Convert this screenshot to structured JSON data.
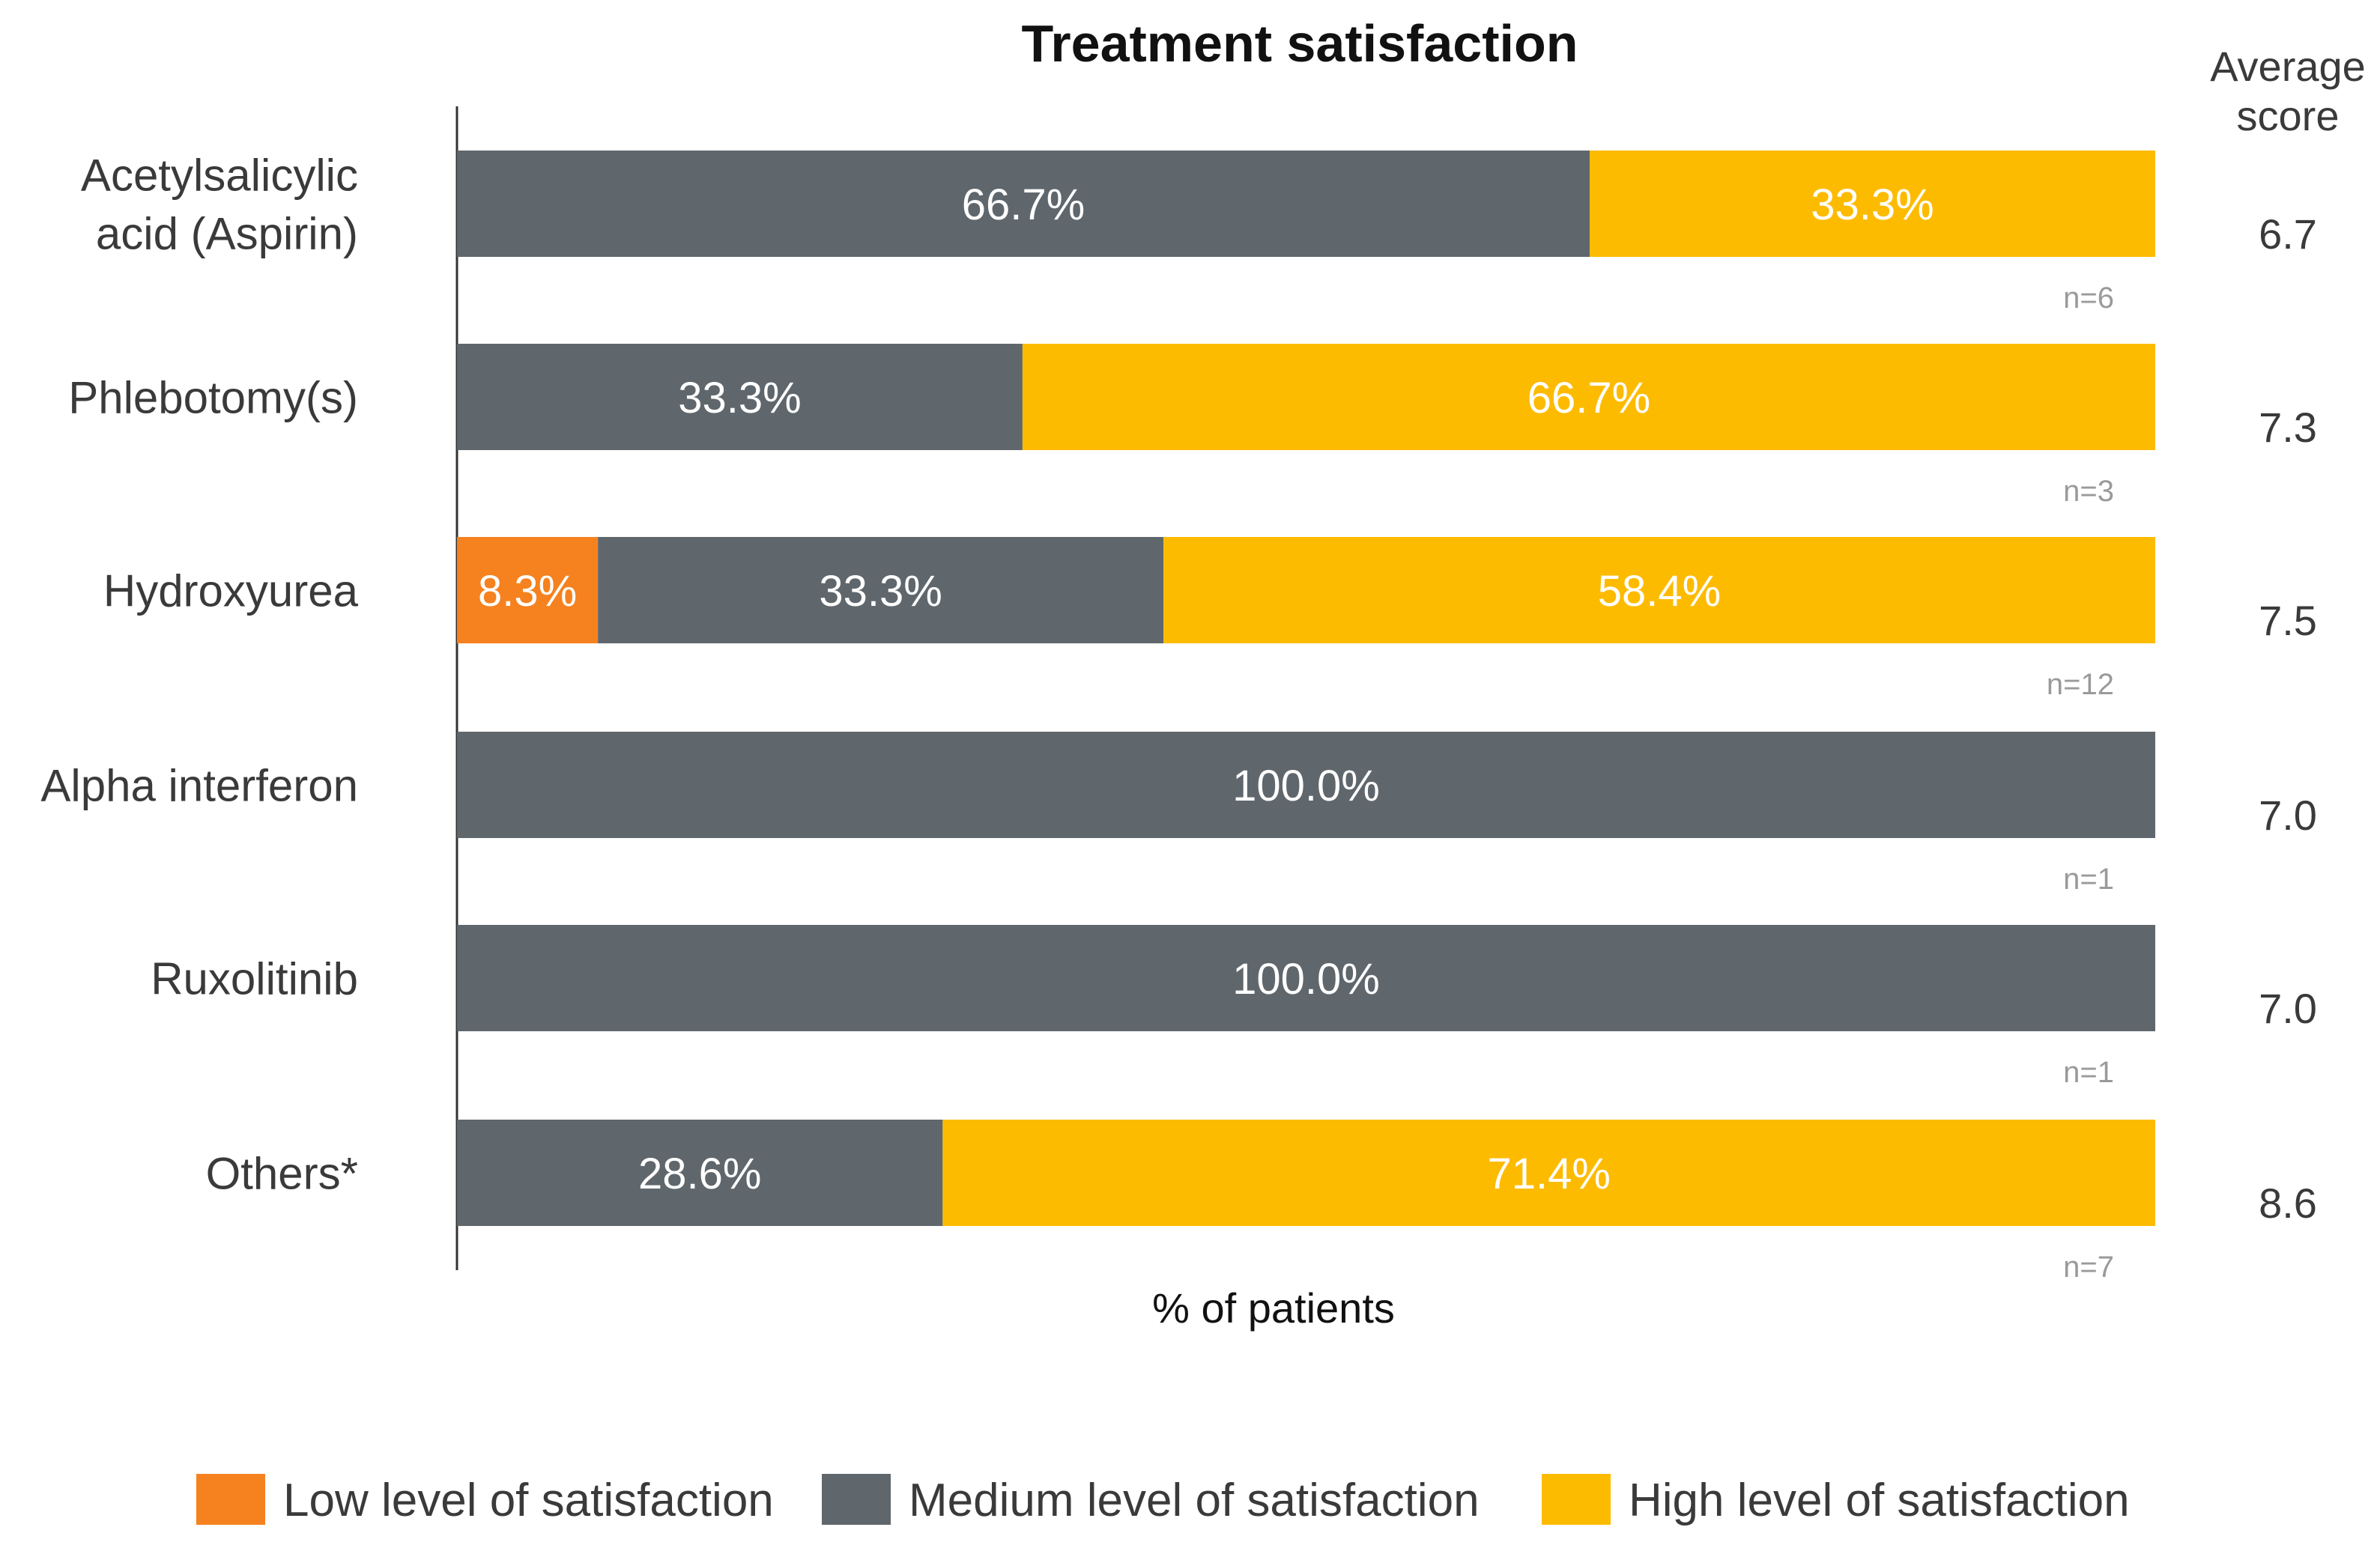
{
  "chart_data": {
    "type": "bar",
    "orientation": "horizontal",
    "stacked": true,
    "title": "Treatment satisfaction",
    "xlabel": "% of patients",
    "ylabel": "",
    "xlim": [
      0,
      100
    ],
    "grid": false,
    "legend_position": "bottom",
    "categories": [
      [
        "Acetylsalicylic",
        "acid (Aspirin)"
      ],
      [
        "Phlebotomy(s)"
      ],
      [
        "Hydroxyurea"
      ],
      [
        "Alpha interferon"
      ],
      [
        "Ruxolitinib"
      ],
      [
        "Others*"
      ]
    ],
    "series": [
      {
        "name": "Low level of satisfaction",
        "color": "#f5821f",
        "values": [
          0,
          0,
          8.3,
          0,
          0,
          0
        ],
        "labels": [
          "",
          "",
          "8.3%",
          "",
          "",
          ""
        ]
      },
      {
        "name": "Medium level of satisfaction",
        "color": "#5f676d",
        "values": [
          66.7,
          33.3,
          33.3,
          100.0,
          100.0,
          28.6
        ],
        "labels": [
          "66.7%",
          "33.3%",
          "33.3%",
          "100.0%",
          "100.0%",
          "28.6%"
        ]
      },
      {
        "name": "High level of satisfaction",
        "color": "#fdbb00",
        "values": [
          33.3,
          66.7,
          58.4,
          0,
          0,
          71.4
        ],
        "labels": [
          "33.3%",
          "66.7%",
          "58.4%",
          "",
          "",
          "71.4%"
        ]
      }
    ],
    "sample_sizes": [
      "n=6",
      "n=3",
      "n=12",
      "n=1",
      "n=1",
      "n=7"
    ],
    "average_score_header": [
      "Average",
      "score"
    ],
    "average_scores": [
      "6.7",
      "7.3",
      "7.5",
      "7.0",
      "7.0",
      "8.6"
    ]
  }
}
